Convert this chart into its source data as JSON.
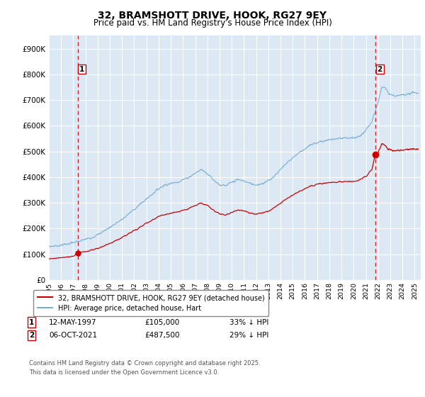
{
  "title": "32, BRAMSHOTT DRIVE, HOOK, RG27 9EY",
  "subtitle": "Price paid vs. HM Land Registry's House Price Index (HPI)",
  "ylabel_ticks": [
    "£0",
    "£100K",
    "£200K",
    "£300K",
    "£400K",
    "£500K",
    "£600K",
    "£700K",
    "£800K",
    "£900K"
  ],
  "ytick_values": [
    0,
    100000,
    200000,
    300000,
    400000,
    500000,
    600000,
    700000,
    800000,
    900000
  ],
  "ylim": [
    0,
    950000
  ],
  "xlim_start": 1995.0,
  "xlim_end": 2025.5,
  "purchase1_year": 1997.36,
  "purchase1_price": 105000,
  "purchase2_year": 2021.77,
  "purchase2_price": 487500,
  "legend_line1": "32, BRAMSHOTT DRIVE, HOOK, RG27 9EY (detached house)",
  "legend_line2": "HPI: Average price, detached house, Hart",
  "annotation1_date": "12-MAY-1997",
  "annotation1_price": "£105,000",
  "annotation1_hpi": "33% ↓ HPI",
  "annotation2_date": "06-OCT-2021",
  "annotation2_price": "£487,500",
  "annotation2_hpi": "29% ↓ HPI",
  "footer": "Contains HM Land Registry data © Crown copyright and database right 2025.\nThis data is licensed under the Open Government Licence v3.0.",
  "bg_color": "#dce9f5",
  "line_red": "#cc0000",
  "line_blue": "#7aadd4",
  "grid_color": "#ffffff",
  "title_fontsize": 10,
  "subtitle_fontsize": 8.5,
  "hpi_anchors": [
    [
      1995.0,
      130000
    ],
    [
      1995.5,
      132000
    ],
    [
      1996.0,
      135000
    ],
    [
      1996.5,
      140000
    ],
    [
      1997.0,
      145000
    ],
    [
      1997.5,
      150000
    ],
    [
      1998.0,
      158000
    ],
    [
      1998.5,
      165000
    ],
    [
      1999.0,
      175000
    ],
    [
      1999.5,
      190000
    ],
    [
      2000.0,
      205000
    ],
    [
      2000.5,
      220000
    ],
    [
      2001.0,
      235000
    ],
    [
      2001.5,
      255000
    ],
    [
      2002.0,
      275000
    ],
    [
      2002.5,
      295000
    ],
    [
      2003.0,
      315000
    ],
    [
      2003.5,
      335000
    ],
    [
      2004.0,
      355000
    ],
    [
      2004.5,
      370000
    ],
    [
      2005.0,
      375000
    ],
    [
      2005.5,
      380000
    ],
    [
      2006.0,
      390000
    ],
    [
      2006.5,
      400000
    ],
    [
      2007.0,
      415000
    ],
    [
      2007.5,
      430000
    ],
    [
      2008.0,
      415000
    ],
    [
      2008.5,
      390000
    ],
    [
      2009.0,
      370000
    ],
    [
      2009.5,
      365000
    ],
    [
      2010.0,
      380000
    ],
    [
      2010.5,
      390000
    ],
    [
      2011.0,
      385000
    ],
    [
      2011.5,
      375000
    ],
    [
      2012.0,
      370000
    ],
    [
      2012.5,
      375000
    ],
    [
      2013.0,
      385000
    ],
    [
      2013.5,
      405000
    ],
    [
      2014.0,
      430000
    ],
    [
      2014.5,
      455000
    ],
    [
      2015.0,
      475000
    ],
    [
      2015.5,
      495000
    ],
    [
      2016.0,
      510000
    ],
    [
      2016.5,
      525000
    ],
    [
      2017.0,
      535000
    ],
    [
      2017.5,
      540000
    ],
    [
      2018.0,
      545000
    ],
    [
      2018.5,
      548000
    ],
    [
      2019.0,
      550000
    ],
    [
      2019.5,
      552000
    ],
    [
      2020.0,
      550000
    ],
    [
      2020.5,
      560000
    ],
    [
      2021.0,
      580000
    ],
    [
      2021.5,
      620000
    ],
    [
      2022.0,
      690000
    ],
    [
      2022.3,
      755000
    ],
    [
      2022.5,
      750000
    ],
    [
      2022.8,
      730000
    ],
    [
      2023.0,
      720000
    ],
    [
      2023.5,
      715000
    ],
    [
      2024.0,
      720000
    ],
    [
      2024.5,
      725000
    ],
    [
      2025.0,
      730000
    ],
    [
      2025.3,
      725000
    ]
  ],
  "red_anchors_seg1": [
    [
      1995.0,
      82000
    ],
    [
      1995.5,
      84000
    ],
    [
      1996.0,
      86000
    ],
    [
      1996.5,
      89000
    ],
    [
      1997.0,
      92000
    ],
    [
      1997.36,
      105000
    ]
  ],
  "red_anchors_seg2": [
    [
      1997.36,
      105000
    ],
    [
      1998.0,
      110000
    ],
    [
      1999.0,
      122000
    ],
    [
      2000.0,
      143000
    ],
    [
      2001.0,
      164000
    ],
    [
      2002.0,
      192000
    ],
    [
      2003.0,
      219000
    ],
    [
      2004.0,
      247000
    ],
    [
      2005.0,
      261000
    ],
    [
      2005.5,
      264000
    ],
    [
      2006.0,
      271000
    ],
    [
      2006.5,
      278000
    ],
    [
      2007.0,
      289000
    ],
    [
      2007.5,
      299000
    ],
    [
      2008.0,
      289000
    ],
    [
      2008.5,
      271000
    ],
    [
      2009.0,
      257000
    ],
    [
      2009.5,
      253000
    ],
    [
      2010.0,
      264000
    ],
    [
      2010.5,
      271000
    ],
    [
      2011.0,
      268000
    ],
    [
      2011.5,
      261000
    ],
    [
      2012.0,
      257000
    ],
    [
      2012.5,
      261000
    ],
    [
      2013.0,
      268000
    ],
    [
      2013.5,
      282000
    ],
    [
      2014.0,
      299000
    ],
    [
      2014.5,
      316000
    ],
    [
      2015.0,
      330000
    ],
    [
      2015.5,
      344000
    ],
    [
      2016.0,
      355000
    ],
    [
      2016.5,
      365000
    ],
    [
      2017.0,
      372000
    ],
    [
      2017.5,
      375000
    ],
    [
      2018.0,
      379000
    ],
    [
      2018.5,
      381000
    ],
    [
      2019.0,
      382000
    ],
    [
      2019.5,
      384000
    ],
    [
      2020.0,
      382000
    ],
    [
      2020.5,
      389000
    ],
    [
      2021.0,
      403000
    ],
    [
      2021.5,
      431000
    ],
    [
      2021.77,
      487500
    ]
  ],
  "red_anchors_seg3": [
    [
      2021.77,
      487500
    ],
    [
      2022.0,
      497000
    ],
    [
      2022.3,
      530000
    ],
    [
      2022.5,
      528000
    ],
    [
      2022.8,
      510000
    ],
    [
      2023.0,
      505000
    ],
    [
      2023.5,
      502000
    ],
    [
      2024.0,
      505000
    ],
    [
      2024.5,
      508000
    ],
    [
      2025.0,
      510000
    ],
    [
      2025.3,
      508000
    ]
  ]
}
